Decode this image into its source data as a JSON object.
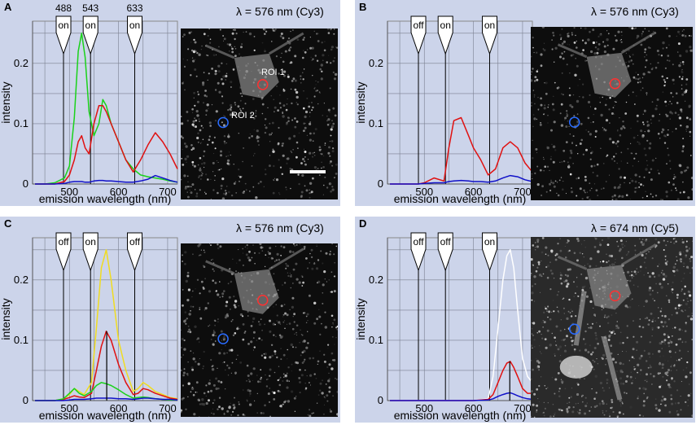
{
  "colors": {
    "panel_bg": "#ccd4ea",
    "green": "#1ad21a",
    "red": "#e01010",
    "blue": "#1010c8",
    "yellow": "#f0dc20",
    "white": "#ffffff",
    "roi1": "#ff3030",
    "roi2": "#2a6cff"
  },
  "chart_data": [
    {
      "panel": "A",
      "type": "line",
      "wavelength_label": "λ = 576 nm (Cy3)",
      "xlabel": "emission wavelength (nm)",
      "ylabel": "intensity",
      "xlim": [
        425,
        720
      ],
      "ylim": [
        0,
        0.27
      ],
      "xticks": [
        500,
        600,
        700
      ],
      "yticks": [
        0,
        0.1,
        0.2
      ],
      "yticklabels": [
        "0",
        "0.1",
        "0.2"
      ],
      "lasers": [
        {
          "wavelength": 488,
          "label": "488",
          "state": "on"
        },
        {
          "wavelength": 543,
          "label": "543",
          "state": "on"
        },
        {
          "wavelength": 633,
          "label": "633",
          "state": "on"
        }
      ],
      "x": [
        430,
        450,
        470,
        490,
        500,
        510,
        518,
        525,
        532,
        540,
        550,
        560,
        568,
        575,
        585,
        600,
        615,
        630,
        645,
        660,
        675,
        690,
        705,
        720
      ],
      "series": [
        {
          "name": "green",
          "color": "#1ad21a",
          "values": [
            0,
            0,
            0.002,
            0.01,
            0.03,
            0.11,
            0.22,
            0.25,
            0.21,
            0.12,
            0.08,
            0.1,
            0.14,
            0.13,
            0.1,
            0.07,
            0.04,
            0.025,
            0.015,
            0.012,
            0.01,
            0.008,
            0.005,
            0.003
          ]
        },
        {
          "name": "red",
          "color": "#e01010",
          "values": [
            0,
            0,
            0,
            0.004,
            0.015,
            0.04,
            0.07,
            0.08,
            0.06,
            0.05,
            0.1,
            0.13,
            0.13,
            0.12,
            0.1,
            0.07,
            0.04,
            0.02,
            0.04,
            0.065,
            0.085,
            0.07,
            0.05,
            0.025
          ]
        },
        {
          "name": "blue",
          "color": "#1010c8",
          "values": [
            0,
            0,
            0,
            0.001,
            0.003,
            0.004,
            0.004,
            0.004,
            0.003,
            0.003,
            0.005,
            0.006,
            0.006,
            0.005,
            0.005,
            0.004,
            0.003,
            0.003,
            0.005,
            0.008,
            0.014,
            0.01,
            0.006,
            0.003
          ]
        }
      ],
      "marker_x": null,
      "image": {
        "roi1_label": "ROI 1",
        "roi2_label": "ROI 2",
        "scale_bar": true,
        "style": "sparse"
      }
    },
    {
      "panel": "B",
      "type": "line",
      "wavelength_label": "λ = 576 nm (Cy3)",
      "xlabel": "emission wavelength (nm)",
      "ylabel": "intensity",
      "xlim": [
        425,
        720
      ],
      "ylim": [
        0,
        0.27
      ],
      "xticks": [
        500,
        600,
        700
      ],
      "yticks": [
        0,
        0.1,
        0.2
      ],
      "yticklabels": [
        "0",
        "0.1",
        "0.2"
      ],
      "lasers": [
        {
          "wavelength": 488,
          "label": "",
          "state": "off"
        },
        {
          "wavelength": 543,
          "label": "",
          "state": "on"
        },
        {
          "wavelength": 633,
          "label": "",
          "state": "on"
        }
      ],
      "x": [
        430,
        470,
        488,
        500,
        520,
        540,
        550,
        560,
        575,
        590,
        600,
        615,
        630,
        645,
        660,
        675,
        690,
        705,
        720
      ],
      "series": [
        {
          "name": "red",
          "color": "#e01010",
          "values": [
            0,
            0,
            0,
            0.002,
            0.01,
            0.005,
            0.06,
            0.105,
            0.11,
            0.08,
            0.06,
            0.04,
            0.015,
            0.025,
            0.06,
            0.07,
            0.06,
            0.035,
            0.02
          ]
        },
        {
          "name": "blue",
          "color": "#1010c8",
          "values": [
            0,
            0,
            0,
            0.001,
            0.002,
            0.002,
            0.004,
            0.005,
            0.006,
            0.005,
            0.004,
            0.004,
            0.003,
            0.005,
            0.01,
            0.014,
            0.012,
            0.007,
            0.004
          ]
        }
      ],
      "marker_x": null,
      "image": {
        "roi1_label": "",
        "roi2_label": "",
        "scale_bar": false,
        "style": "sparse"
      }
    },
    {
      "panel": "C",
      "type": "line",
      "wavelength_label": "λ = 576 nm (Cy3)",
      "xlabel": "emission wavelength (nm)",
      "ylabel": "intensity",
      "xlim": [
        425,
        720
      ],
      "ylim": [
        0,
        0.27
      ],
      "xticks": [
        500,
        600,
        700
      ],
      "yticks": [
        0,
        0.1,
        0.2
      ],
      "yticklabels": [
        "0",
        "0.1",
        "0.2"
      ],
      "lasers": [
        {
          "wavelength": 488,
          "label": "",
          "state": "off"
        },
        {
          "wavelength": 543,
          "label": "",
          "state": "on"
        },
        {
          "wavelength": 633,
          "label": "",
          "state": "off"
        }
      ],
      "x": [
        430,
        470,
        488,
        500,
        510,
        520,
        530,
        545,
        555,
        565,
        575,
        585,
        600,
        615,
        630,
        640,
        650,
        660,
        675,
        690,
        705,
        720
      ],
      "series": [
        {
          "name": "yellow",
          "color": "#f0dc20",
          "values": [
            0,
            0,
            0.003,
            0.01,
            0.02,
            0.015,
            0.01,
            0.03,
            0.12,
            0.22,
            0.25,
            0.2,
            0.1,
            0.05,
            0.015,
            0.02,
            0.03,
            0.025,
            0.015,
            0.01,
            0.005,
            0.003
          ]
        },
        {
          "name": "red",
          "color": "#e01010",
          "values": [
            0,
            0,
            0.002,
            0.005,
            0.008,
            0.006,
            0.005,
            0.012,
            0.05,
            0.09,
            0.115,
            0.1,
            0.06,
            0.03,
            0.01,
            0.012,
            0.02,
            0.018,
            0.012,
            0.008,
            0.004,
            0.002
          ]
        },
        {
          "name": "green",
          "color": "#1ad21a",
          "values": [
            0,
            0,
            0.003,
            0.012,
            0.02,
            0.012,
            0.008,
            0.015,
            0.025,
            0.03,
            0.028,
            0.025,
            0.018,
            0.01,
            0.004,
            0.005,
            0.006,
            0.005,
            0.003,
            0.002,
            0.001,
            0.001
          ]
        },
        {
          "name": "blue",
          "color": "#1010c8",
          "values": [
            0,
            0,
            0,
            0.001,
            0.002,
            0.002,
            0.002,
            0.003,
            0.004,
            0.004,
            0.004,
            0.004,
            0.003,
            0.003,
            0.002,
            0.003,
            0.004,
            0.004,
            0.003,
            0.002,
            0.002,
            0.001
          ]
        }
      ],
      "marker_x": 576,
      "marker_y": 0.115,
      "image": {
        "roi1_label": "",
        "roi2_label": "",
        "scale_bar": false,
        "style": "sparse"
      }
    },
    {
      "panel": "D",
      "type": "line",
      "wavelength_label": "λ = 674 nm (Cy5)",
      "xlabel": "emission wavelength (nm)",
      "ylabel": "intensity",
      "xlim": [
        425,
        720
      ],
      "ylim": [
        0,
        0.27
      ],
      "xticks": [
        500,
        600,
        700
      ],
      "yticks": [
        0,
        0.1,
        0.2
      ],
      "yticklabels": [
        "0",
        "0.1",
        "0.2"
      ],
      "lasers": [
        {
          "wavelength": 488,
          "label": "",
          "state": "off"
        },
        {
          "wavelength": 543,
          "label": "",
          "state": "off"
        },
        {
          "wavelength": 633,
          "label": "",
          "state": "on"
        }
      ],
      "x": [
        430,
        500,
        600,
        630,
        640,
        650,
        660,
        668,
        675,
        682,
        690,
        700,
        710,
        720
      ],
      "series": [
        {
          "name": "white",
          "color": "#ffffff",
          "values": [
            0,
            0,
            0,
            0.003,
            0.04,
            0.12,
            0.2,
            0.24,
            0.25,
            0.22,
            0.15,
            0.07,
            0.04,
            0.03
          ]
        },
        {
          "name": "red",
          "color": "#e01010",
          "values": [
            0,
            0,
            0,
            0.002,
            0.01,
            0.03,
            0.05,
            0.062,
            0.065,
            0.055,
            0.04,
            0.02,
            0.012,
            0.012
          ]
        },
        {
          "name": "blue",
          "color": "#1010c8",
          "values": [
            0,
            0,
            0,
            0.001,
            0.003,
            0.007,
            0.01,
            0.012,
            0.013,
            0.011,
            0.008,
            0.005,
            0.003,
            0.002
          ]
        }
      ],
      "marker_x": 674,
      "marker_y": 0.065,
      "image": {
        "roi1_label": "",
        "roi2_label": "",
        "scale_bar": false,
        "style": "dense"
      }
    }
  ]
}
